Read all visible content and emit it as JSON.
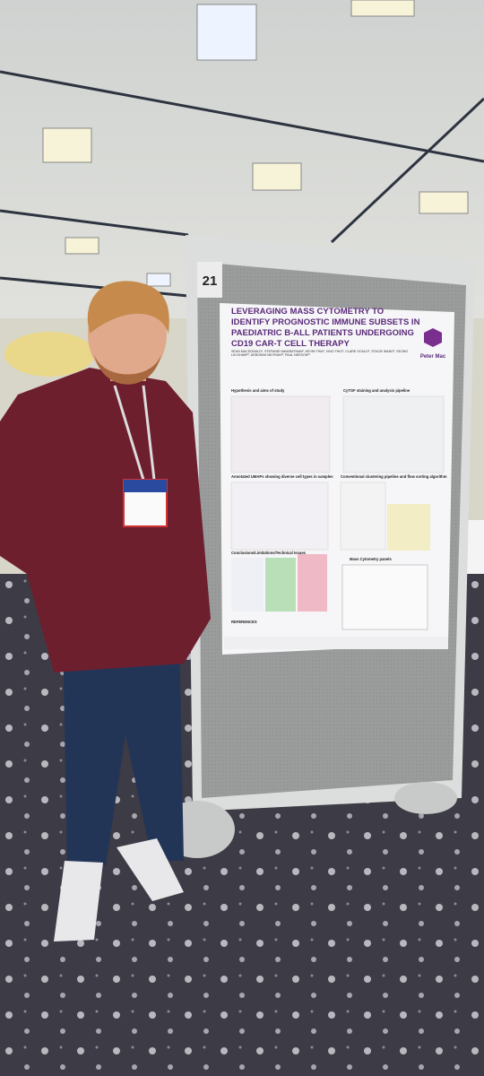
{
  "board": {
    "number": "21"
  },
  "poster": {
    "title_lines": [
      "LEVERAGING MASS CYTOMETRY TO",
      "IDENTIFY PROGNOSTIC IMMUNE SUBSETS IN",
      "PAEDIATRIC B-ALL PATIENTS UNDERGOING",
      "CD19 CAR-T CELL THERAPY"
    ],
    "authors": "SEAN MACDONALD¹, STEFANIE NAVARATNAM², KEVIN THIA², VINO THIO², CLARE GOULD², STACIE WANG², SEONG LIN KHAW²³, DEBORAH MEYRAN¹², PAUL NEESON¹²",
    "logo": "Peter Mac",
    "sections": [
      "Hypothesis and aims of study",
      "CyTOF staining and analysis pipeline",
      "Annotated UMAPs showing diverse cell types in samples",
      "Conventional clustering pipeline and flow sorting algorithm",
      "Conclusions/Limitations/Technical Issues",
      "Mass Cytometry panels",
      "REFERENCES"
    ]
  }
}
